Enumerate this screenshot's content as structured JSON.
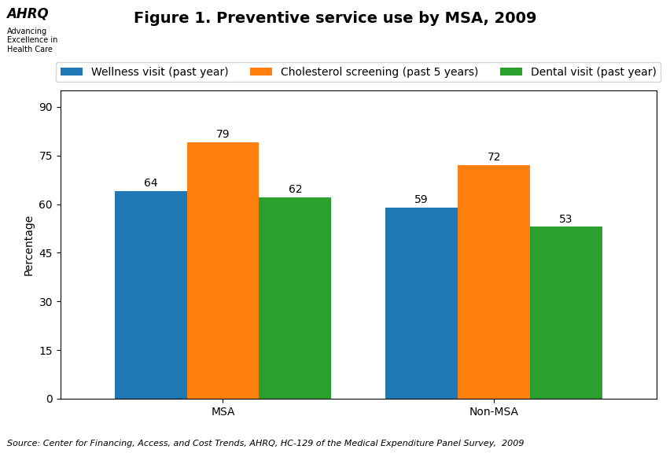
{
  "chart_data": {
    "type": "bar",
    "title": "Figure 1. Preventive service use by MSA, 2009",
    "categories": [
      "MSA",
      "Non-MSA"
    ],
    "series": [
      {
        "name": "Wellness visit (past year)",
        "values": [
          64,
          59
        ]
      },
      {
        "name": "Cholesterol screening (past 5 years)",
        "values": [
          79,
          72
        ]
      },
      {
        "name": "Dental visit (past year)",
        "values": [
          62,
          53
        ]
      }
    ],
    "y_label": "Percentage",
    "ylim": [
      0,
      95
    ],
    "yticks": [
      0,
      15,
      30,
      45,
      60,
      75,
      90
    ],
    "data_labels": true,
    "legend": "upper center",
    "annotations": [
      "AHRQ",
      "Advancing\nExcellence in\nHealth Care",
      "Source: Center for Financing, Access, and Cost Trends, AHRQ, HC-129 of the Medical Expenditure Panel Survey,  2009"
    ]
  }
}
